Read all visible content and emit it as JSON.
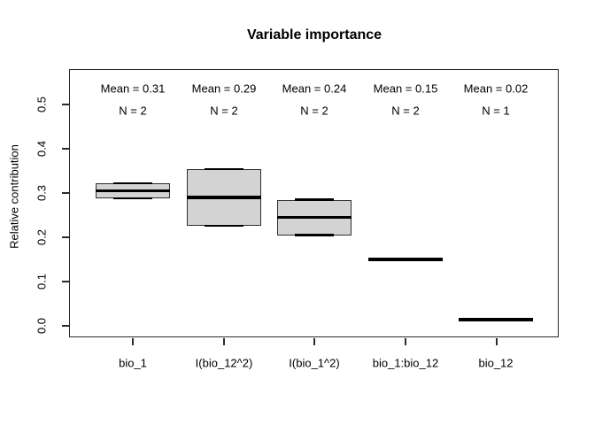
{
  "title": "Variable importance",
  "chart_data": {
    "type": "boxplot",
    "title": "Variable importance",
    "xlabel": "",
    "ylabel": "Relative contribution",
    "yticks": [
      "0.0",
      "0.1",
      "0.2",
      "0.3",
      "0.4",
      "0.5"
    ],
    "ytick_values": [
      0.0,
      0.1,
      0.2,
      0.3,
      0.4,
      0.5
    ],
    "ylim": [
      -0.028,
      0.58
    ],
    "grid": false,
    "legend": "none",
    "categories": [
      "bio_1",
      "I(bio_12^2)",
      "I(bio_1^2)",
      "bio_1:bio_12",
      "bio_12"
    ],
    "groups": [
      {
        "label": "bio_1",
        "mean_label": "Mean = 0.31",
        "n_label": "N = 2",
        "mean": 0.31,
        "n": 2,
        "min": 0.288,
        "max": 0.322,
        "mid": 0.305
      },
      {
        "label": "I(bio_12^2)",
        "mean_label": "Mean = 0.29",
        "n_label": "N = 2",
        "mean": 0.29,
        "n": 2,
        "min": 0.226,
        "max": 0.354,
        "mid": 0.29
      },
      {
        "label": "I(bio_1^2)",
        "mean_label": "Mean = 0.24",
        "n_label": "N = 2",
        "mean": 0.24,
        "n": 2,
        "min": 0.205,
        "max": 0.285,
        "mid": 0.245
      },
      {
        "label": "bio_1:bio_12",
        "mean_label": "Mean = 0.15",
        "n_label": "N = 2",
        "mean": 0.15,
        "n": 2,
        "min": 0.15,
        "max": 0.15,
        "mid": 0.15
      },
      {
        "label": "bio_12",
        "mean_label": "Mean = 0.02",
        "n_label": "N = 1",
        "mean": 0.02,
        "n": 1,
        "min": 0.015,
        "max": 0.015,
        "mid": 0.015
      }
    ],
    "colors": {
      "box_fill": "#d3d3d3",
      "box_border": "#2e2e2e",
      "line": "#000000",
      "background": "#ffffff",
      "text": "#000000"
    }
  }
}
